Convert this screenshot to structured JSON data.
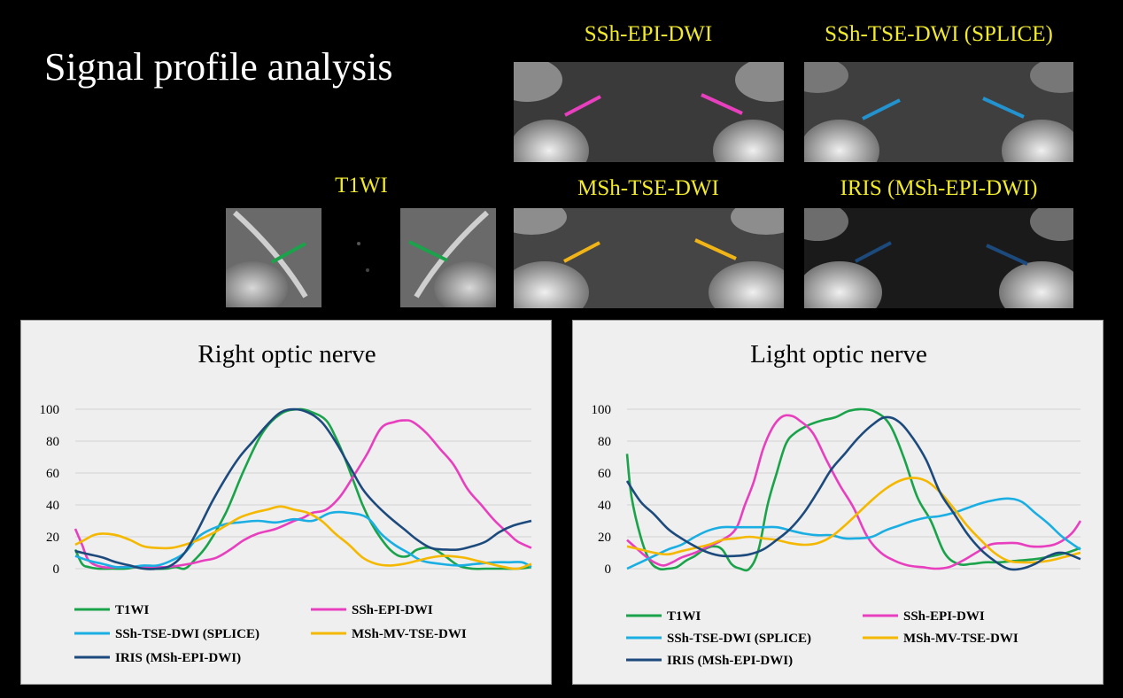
{
  "page": {
    "title": "Signal profile analysis"
  },
  "images": [
    {
      "label": "T1WI",
      "marker_color": "#1aa34a"
    },
    {
      "label": "SSh-EPI-DWI",
      "marker_color": "#e83fbf"
    },
    {
      "label": "SSh-TSE-DWI (SPLICE)",
      "marker_color": "#2393d0"
    },
    {
      "label": "MSh-TSE-DWI",
      "marker_color": "#f0b417"
    },
    {
      "label": "IRIS (MSh-EPI-DWI)",
      "marker_color": "#1d4a7c"
    }
  ],
  "chart_data": [
    {
      "type": "line",
      "title": "Right optic nerve",
      "xlabel": "",
      "ylabel": "",
      "ylim": [
        0,
        100
      ],
      "yticks": [
        0,
        20,
        40,
        60,
        80,
        100
      ],
      "xlim": [
        0,
        100
      ],
      "grid": true,
      "legend_position": "bottom",
      "series": [
        {
          "name": "T1WI",
          "color": "#1aa34a",
          "x": [
            0,
            1.5,
            3,
            5,
            8,
            11,
            14,
            17,
            20,
            22,
            24,
            26,
            29,
            33,
            37,
            41,
            45,
            49,
            52,
            55,
            57,
            59,
            61,
            63,
            65,
            67,
            69,
            71,
            73,
            75,
            78,
            81,
            84,
            87,
            90,
            92,
            94,
            97,
            100
          ],
          "y": [
            12,
            3,
            1,
            0,
            0,
            0,
            1,
            0,
            0,
            1,
            0,
            5,
            15,
            35,
            62,
            85,
            97,
            100,
            98,
            93,
            83,
            70,
            55,
            40,
            28,
            19,
            12,
            8,
            8,
            12,
            13,
            8,
            2,
            0,
            0,
            0,
            0,
            0,
            1
          ]
        },
        {
          "name": "SSh-EPI-DWI",
          "color": "#e83fbf",
          "x": [
            0,
            1.5,
            3,
            6,
            10,
            15,
            20,
            25,
            28,
            31,
            34,
            37,
            40,
            44,
            48,
            50,
            52,
            55,
            58,
            61,
            64,
            67,
            70,
            72,
            74,
            77,
            80,
            83,
            86,
            89,
            92,
            95,
            97,
            100
          ],
          "y": [
            25,
            15,
            5,
            1,
            1,
            1,
            1,
            3,
            5,
            7,
            12,
            18,
            22,
            25,
            30,
            32,
            35,
            37,
            45,
            58,
            72,
            88,
            92,
            93,
            92,
            85,
            75,
            65,
            50,
            40,
            30,
            22,
            17,
            13
          ]
        },
        {
          "name": "SSh-TSE-DWI (SPLICE)",
          "color": "#1aaee2",
          "x": [
            0,
            3,
            6,
            9,
            12,
            15,
            18,
            21,
            24,
            27,
            30,
            33,
            36,
            40,
            44,
            48,
            52,
            56,
            60,
            64,
            67,
            70,
            73,
            76,
            80,
            84,
            88,
            92,
            95,
            98,
            100
          ],
          "y": [
            8,
            5,
            3,
            1,
            1,
            2,
            2,
            5,
            10,
            20,
            25,
            28,
            29,
            30,
            29,
            31,
            30,
            35,
            35,
            32,
            22,
            15,
            10,
            5,
            3,
            2,
            3,
            4,
            4,
            4,
            1
          ]
        },
        {
          "name": "MSh-MV-TSE-DWI",
          "color": "#f5b800",
          "x": [
            0,
            2,
            4,
            6,
            9,
            12,
            15,
            18,
            21,
            24,
            27,
            30,
            33,
            36,
            39,
            42,
            45,
            48,
            51,
            54,
            57,
            60,
            63,
            66,
            69,
            72,
            75,
            78,
            81,
            85,
            88,
            91,
            94,
            97,
            100
          ],
          "y": [
            15,
            18,
            21,
            22,
            21,
            18,
            14,
            13,
            13,
            15,
            18,
            22,
            27,
            32,
            35,
            37,
            39,
            37,
            35,
            30,
            22,
            15,
            7,
            3,
            2,
            3,
            5,
            7,
            8,
            7,
            5,
            3,
            1,
            0,
            3
          ]
        },
        {
          "name": "IRIS (MSh-EPI-DWI)",
          "color": "#1d4a7c",
          "x": [
            0,
            3,
            6,
            9,
            12,
            15,
            18,
            21,
            24,
            27,
            30,
            33,
            36,
            39,
            42,
            45,
            48,
            51,
            54,
            57,
            60,
            63,
            66,
            69,
            72,
            75,
            78,
            81,
            84,
            87,
            90,
            93,
            96,
            100
          ],
          "y": [
            11,
            9,
            7,
            4,
            2,
            0,
            0,
            2,
            10,
            25,
            42,
            57,
            70,
            80,
            90,
            98,
            100,
            98,
            92,
            80,
            65,
            50,
            40,
            32,
            25,
            18,
            13,
            12,
            12,
            14,
            17,
            23,
            27,
            30
          ]
        }
      ],
      "legend": [
        "T1WI",
        "SSh-EPI-DWI",
        "SSh-TSE-DWI (SPLICE)",
        "MSh-MV-TSE-DWI",
        "IRIS (MSh-EPI-DWI)"
      ]
    },
    {
      "type": "line",
      "title": "Light optic nerve",
      "xlabel": "",
      "ylabel": "",
      "ylim": [
        0,
        100
      ],
      "yticks": [
        0,
        20,
        40,
        60,
        80,
        100
      ],
      "xlim": [
        0,
        100
      ],
      "grid": true,
      "legend_position": "bottom",
      "series": [
        {
          "name": "T1WI",
          "color": "#1aa34a",
          "x": [
            0,
            1,
            3,
            5,
            7,
            9,
            11,
            13,
            15,
            17,
            19,
            21,
            23,
            25,
            27,
            29,
            31,
            33,
            35,
            37,
            40,
            43,
            46,
            49,
            52,
            55,
            58,
            61,
            64,
            67,
            70,
            73,
            76,
            79,
            82,
            86,
            90,
            94,
            97,
            100
          ],
          "y": [
            72,
            45,
            20,
            5,
            0,
            0,
            1,
            5,
            8,
            12,
            14,
            12,
            3,
            0,
            0,
            12,
            40,
            60,
            78,
            85,
            90,
            93,
            95,
            99,
            100,
            98,
            90,
            70,
            45,
            30,
            10,
            3,
            3,
            4,
            4,
            5,
            6,
            8,
            10,
            13
          ]
        },
        {
          "name": "SSh-EPI-DWI",
          "color": "#e83fbf",
          "x": [
            0,
            2,
            4,
            6,
            8,
            10,
            12,
            15,
            18,
            21,
            24,
            26,
            28,
            30,
            32,
            34,
            36,
            38,
            41,
            44,
            47,
            50,
            53,
            56,
            59,
            62,
            65,
            68,
            71,
            74,
            77,
            80,
            83,
            86,
            89,
            92,
            95,
            98,
            100
          ],
          "y": [
            18,
            13,
            8,
            4,
            2,
            4,
            7,
            10,
            14,
            18,
            25,
            40,
            55,
            75,
            88,
            95,
            96,
            93,
            85,
            68,
            52,
            38,
            20,
            10,
            5,
            2,
            1,
            0,
            1,
            5,
            10,
            15,
            16,
            16,
            14,
            14,
            16,
            22,
            30
          ]
        },
        {
          "name": "SSh-TSE-DWI (SPLICE)",
          "color": "#1aaee2",
          "x": [
            0,
            3,
            6,
            9,
            12,
            15,
            18,
            21,
            24,
            27,
            30,
            33,
            36,
            39,
            42,
            45,
            48,
            51,
            54,
            57,
            60,
            63,
            66,
            69,
            72,
            75,
            78,
            81,
            84,
            87,
            90,
            93,
            96,
            100
          ],
          "y": [
            0,
            4,
            8,
            12,
            15,
            20,
            24,
            26,
            26,
            26,
            26,
            26,
            24,
            22,
            21,
            21,
            19,
            19,
            20,
            24,
            27,
            30,
            32,
            33,
            35,
            38,
            41,
            43,
            44,
            42,
            35,
            28,
            20,
            12
          ]
        },
        {
          "name": "MSh-MV-TSE-DWI",
          "color": "#f5b800",
          "x": [
            0,
            3,
            6,
            9,
            12,
            15,
            18,
            21,
            24,
            27,
            30,
            33,
            36,
            39,
            42,
            45,
            48,
            51,
            54,
            57,
            60,
            63,
            66,
            69,
            72,
            75,
            78,
            81,
            84,
            87,
            90,
            93,
            96,
            100
          ],
          "y": [
            14,
            12,
            10,
            9,
            11,
            13,
            15,
            18,
            19,
            20,
            19,
            18,
            16,
            15,
            16,
            20,
            27,
            35,
            43,
            50,
            55,
            57,
            55,
            48,
            38,
            27,
            18,
            10,
            5,
            4,
            4,
            5,
            7,
            10
          ]
        },
        {
          "name": "IRIS (MSh-EPI-DWI)",
          "color": "#1d4a7c",
          "x": [
            0,
            3,
            6,
            9,
            12,
            15,
            18,
            21,
            24,
            27,
            30,
            33,
            36,
            39,
            42,
            45,
            48,
            51,
            54,
            57,
            60,
            63,
            66,
            69,
            72,
            75,
            78,
            81,
            84,
            87,
            90,
            93,
            96,
            100
          ],
          "y": [
            55,
            42,
            34,
            25,
            19,
            14,
            10,
            8,
            8,
            9,
            12,
            18,
            25,
            35,
            48,
            62,
            72,
            82,
            90,
            95,
            92,
            82,
            68,
            48,
            35,
            22,
            12,
            5,
            0,
            0,
            3,
            8,
            10,
            6
          ]
        }
      ],
      "legend": [
        "T1WI",
        "SSh-EPI-DWI",
        "SSh-TSE-DWI (SPLICE)",
        "MSh-MV-TSE-DWI",
        "IRIS (MSh-EPI-DWI)"
      ]
    }
  ]
}
